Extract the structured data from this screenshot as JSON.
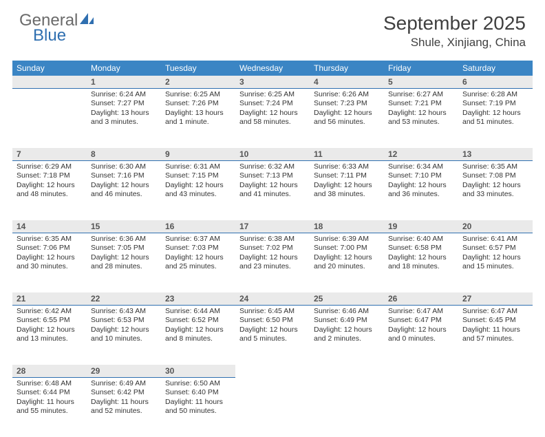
{
  "logo": {
    "text1": "General",
    "text2": "Blue"
  },
  "title": "September 2025",
  "location": "Shule, Xinjiang, China",
  "colors": {
    "header_bg": "#3b85c4",
    "header_text": "#ffffff",
    "day_bg": "#eaeaea",
    "day_border": "#2f6fb0",
    "logo_gray": "#6a6a6a",
    "logo_blue": "#2f6fb0"
  },
  "weekdays": [
    "Sunday",
    "Monday",
    "Tuesday",
    "Wednesday",
    "Thursday",
    "Friday",
    "Saturday"
  ],
  "weeks": [
    [
      {
        "day": "",
        "sunrise": "",
        "sunset": "",
        "daylight1": "",
        "daylight2": ""
      },
      {
        "day": "1",
        "sunrise": "Sunrise: 6:24 AM",
        "sunset": "Sunset: 7:27 PM",
        "daylight1": "Daylight: 13 hours",
        "daylight2": "and 3 minutes."
      },
      {
        "day": "2",
        "sunrise": "Sunrise: 6:25 AM",
        "sunset": "Sunset: 7:26 PM",
        "daylight1": "Daylight: 13 hours",
        "daylight2": "and 1 minute."
      },
      {
        "day": "3",
        "sunrise": "Sunrise: 6:25 AM",
        "sunset": "Sunset: 7:24 PM",
        "daylight1": "Daylight: 12 hours",
        "daylight2": "and 58 minutes."
      },
      {
        "day": "4",
        "sunrise": "Sunrise: 6:26 AM",
        "sunset": "Sunset: 7:23 PM",
        "daylight1": "Daylight: 12 hours",
        "daylight2": "and 56 minutes."
      },
      {
        "day": "5",
        "sunrise": "Sunrise: 6:27 AM",
        "sunset": "Sunset: 7:21 PM",
        "daylight1": "Daylight: 12 hours",
        "daylight2": "and 53 minutes."
      },
      {
        "day": "6",
        "sunrise": "Sunrise: 6:28 AM",
        "sunset": "Sunset: 7:19 PM",
        "daylight1": "Daylight: 12 hours",
        "daylight2": "and 51 minutes."
      }
    ],
    [
      {
        "day": "7",
        "sunrise": "Sunrise: 6:29 AM",
        "sunset": "Sunset: 7:18 PM",
        "daylight1": "Daylight: 12 hours",
        "daylight2": "and 48 minutes."
      },
      {
        "day": "8",
        "sunrise": "Sunrise: 6:30 AM",
        "sunset": "Sunset: 7:16 PM",
        "daylight1": "Daylight: 12 hours",
        "daylight2": "and 46 minutes."
      },
      {
        "day": "9",
        "sunrise": "Sunrise: 6:31 AM",
        "sunset": "Sunset: 7:15 PM",
        "daylight1": "Daylight: 12 hours",
        "daylight2": "and 43 minutes."
      },
      {
        "day": "10",
        "sunrise": "Sunrise: 6:32 AM",
        "sunset": "Sunset: 7:13 PM",
        "daylight1": "Daylight: 12 hours",
        "daylight2": "and 41 minutes."
      },
      {
        "day": "11",
        "sunrise": "Sunrise: 6:33 AM",
        "sunset": "Sunset: 7:11 PM",
        "daylight1": "Daylight: 12 hours",
        "daylight2": "and 38 minutes."
      },
      {
        "day": "12",
        "sunrise": "Sunrise: 6:34 AM",
        "sunset": "Sunset: 7:10 PM",
        "daylight1": "Daylight: 12 hours",
        "daylight2": "and 36 minutes."
      },
      {
        "day": "13",
        "sunrise": "Sunrise: 6:35 AM",
        "sunset": "Sunset: 7:08 PM",
        "daylight1": "Daylight: 12 hours",
        "daylight2": "and 33 minutes."
      }
    ],
    [
      {
        "day": "14",
        "sunrise": "Sunrise: 6:35 AM",
        "sunset": "Sunset: 7:06 PM",
        "daylight1": "Daylight: 12 hours",
        "daylight2": "and 30 minutes."
      },
      {
        "day": "15",
        "sunrise": "Sunrise: 6:36 AM",
        "sunset": "Sunset: 7:05 PM",
        "daylight1": "Daylight: 12 hours",
        "daylight2": "and 28 minutes."
      },
      {
        "day": "16",
        "sunrise": "Sunrise: 6:37 AM",
        "sunset": "Sunset: 7:03 PM",
        "daylight1": "Daylight: 12 hours",
        "daylight2": "and 25 minutes."
      },
      {
        "day": "17",
        "sunrise": "Sunrise: 6:38 AM",
        "sunset": "Sunset: 7:02 PM",
        "daylight1": "Daylight: 12 hours",
        "daylight2": "and 23 minutes."
      },
      {
        "day": "18",
        "sunrise": "Sunrise: 6:39 AM",
        "sunset": "Sunset: 7:00 PM",
        "daylight1": "Daylight: 12 hours",
        "daylight2": "and 20 minutes."
      },
      {
        "day": "19",
        "sunrise": "Sunrise: 6:40 AM",
        "sunset": "Sunset: 6:58 PM",
        "daylight1": "Daylight: 12 hours",
        "daylight2": "and 18 minutes."
      },
      {
        "day": "20",
        "sunrise": "Sunrise: 6:41 AM",
        "sunset": "Sunset: 6:57 PM",
        "daylight1": "Daylight: 12 hours",
        "daylight2": "and 15 minutes."
      }
    ],
    [
      {
        "day": "21",
        "sunrise": "Sunrise: 6:42 AM",
        "sunset": "Sunset: 6:55 PM",
        "daylight1": "Daylight: 12 hours",
        "daylight2": "and 13 minutes."
      },
      {
        "day": "22",
        "sunrise": "Sunrise: 6:43 AM",
        "sunset": "Sunset: 6:53 PM",
        "daylight1": "Daylight: 12 hours",
        "daylight2": "and 10 minutes."
      },
      {
        "day": "23",
        "sunrise": "Sunrise: 6:44 AM",
        "sunset": "Sunset: 6:52 PM",
        "daylight1": "Daylight: 12 hours",
        "daylight2": "and 8 minutes."
      },
      {
        "day": "24",
        "sunrise": "Sunrise: 6:45 AM",
        "sunset": "Sunset: 6:50 PM",
        "daylight1": "Daylight: 12 hours",
        "daylight2": "and 5 minutes."
      },
      {
        "day": "25",
        "sunrise": "Sunrise: 6:46 AM",
        "sunset": "Sunset: 6:49 PM",
        "daylight1": "Daylight: 12 hours",
        "daylight2": "and 2 minutes."
      },
      {
        "day": "26",
        "sunrise": "Sunrise: 6:47 AM",
        "sunset": "Sunset: 6:47 PM",
        "daylight1": "Daylight: 12 hours",
        "daylight2": "and 0 minutes."
      },
      {
        "day": "27",
        "sunrise": "Sunrise: 6:47 AM",
        "sunset": "Sunset: 6:45 PM",
        "daylight1": "Daylight: 11 hours",
        "daylight2": "and 57 minutes."
      }
    ],
    [
      {
        "day": "28",
        "sunrise": "Sunrise: 6:48 AM",
        "sunset": "Sunset: 6:44 PM",
        "daylight1": "Daylight: 11 hours",
        "daylight2": "and 55 minutes."
      },
      {
        "day": "29",
        "sunrise": "Sunrise: 6:49 AM",
        "sunset": "Sunset: 6:42 PM",
        "daylight1": "Daylight: 11 hours",
        "daylight2": "and 52 minutes."
      },
      {
        "day": "30",
        "sunrise": "Sunrise: 6:50 AM",
        "sunset": "Sunset: 6:40 PM",
        "daylight1": "Daylight: 11 hours",
        "daylight2": "and 50 minutes."
      },
      {
        "day": "",
        "sunrise": "",
        "sunset": "",
        "daylight1": "",
        "daylight2": ""
      },
      {
        "day": "",
        "sunrise": "",
        "sunset": "",
        "daylight1": "",
        "daylight2": ""
      },
      {
        "day": "",
        "sunrise": "",
        "sunset": "",
        "daylight1": "",
        "daylight2": ""
      },
      {
        "day": "",
        "sunrise": "",
        "sunset": "",
        "daylight1": "",
        "daylight2": ""
      }
    ]
  ]
}
